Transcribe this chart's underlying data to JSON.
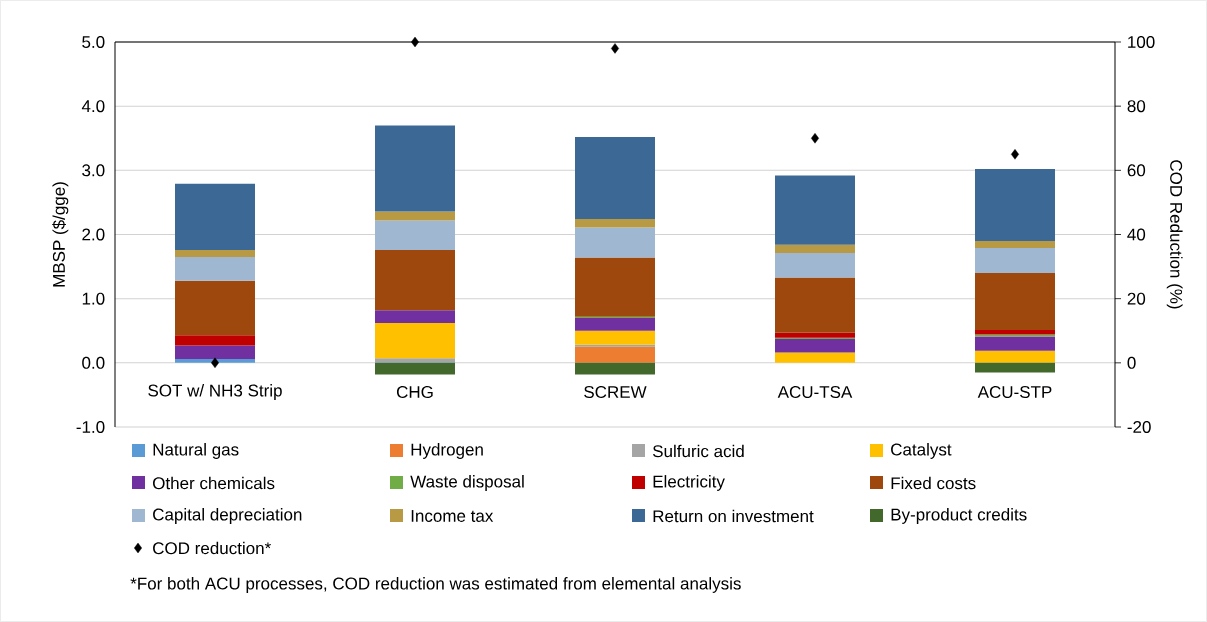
{
  "chart_data": {
    "type": "bar",
    "stacked": true,
    "categories": [
      "SOT w/ NH3 Strip",
      "CHG",
      "SCREW",
      "ACU-TSA",
      "ACU-STP"
    ],
    "series": [
      {
        "name": "Natural gas",
        "color": "#5b9bd5",
        "values": [
          0.06,
          0.01,
          null,
          null,
          null
        ]
      },
      {
        "name": "Hydrogen",
        "color": "#ed7d31",
        "values": [
          null,
          null,
          0.25,
          null,
          null
        ]
      },
      {
        "name": "Sulfuric acid",
        "color": "#a5a5a5",
        "values": [
          null,
          0.06,
          0.03,
          null,
          null
        ]
      },
      {
        "name": "Catalyst",
        "color": "#ffc000",
        "values": [
          null,
          0.55,
          0.22,
          0.16,
          0.19
        ]
      },
      {
        "name": "Other chemicals",
        "color": "#7030a0",
        "values": [
          0.21,
          0.2,
          0.2,
          0.21,
          0.22
        ]
      },
      {
        "name": "Waste disposal",
        "color": "#70ad47",
        "values": [
          null,
          null,
          0.02,
          0.02,
          0.03
        ]
      },
      {
        "name": "Electricity",
        "color": "#c00000",
        "values": [
          0.16,
          null,
          null,
          0.08,
          0.07
        ]
      },
      {
        "name": "Fixed costs",
        "color": "#9e480e",
        "values": [
          0.85,
          0.94,
          0.92,
          0.86,
          0.89
        ]
      },
      {
        "name": "Capital depreciation",
        "color": "#9fb7d1",
        "values": [
          0.37,
          0.46,
          0.47,
          0.38,
          0.39
        ]
      },
      {
        "name": "Income tax",
        "color": "#b89a45",
        "values": [
          0.11,
          0.14,
          0.13,
          0.13,
          0.11
        ]
      },
      {
        "name": "Return on investment",
        "color": "#3b6894",
        "values": [
          1.03,
          1.34,
          1.28,
          1.08,
          1.12
        ]
      },
      {
        "name": "By-product credits",
        "color": "#43682b",
        "values": [
          null,
          -0.18,
          -0.18,
          null,
          -0.15
        ]
      },
      {
        "name": "COD reduction*",
        "type": "scatter",
        "axis": "y2",
        "marker": "diamond",
        "color": "#000000",
        "values": [
          0,
          100,
          98,
          70,
          65
        ]
      }
    ],
    "ylabel": "MBSP ($/gge)",
    "y2label": "COD Reduction (%)",
    "ylim": [
      -1,
      5
    ],
    "yticks": [
      {
        "value": -1,
        "label": "-1.0"
      },
      {
        "value": 0,
        "label": "0.0"
      },
      {
        "value": 1,
        "label": "1.0"
      },
      {
        "value": 2,
        "label": "2.0"
      },
      {
        "value": 3,
        "label": "3.0"
      },
      {
        "value": 4,
        "label": "4.0"
      },
      {
        "value": 5,
        "label": "5.0"
      }
    ],
    "y2lim": [
      -20,
      100
    ],
    "y2ticks": [
      -20,
      0,
      20,
      40,
      60,
      80,
      100
    ],
    "grid": "y",
    "legend": "bottom",
    "annotations": [
      "*For both ACU processes, COD reduction was estimated from elemental analysis"
    ]
  }
}
